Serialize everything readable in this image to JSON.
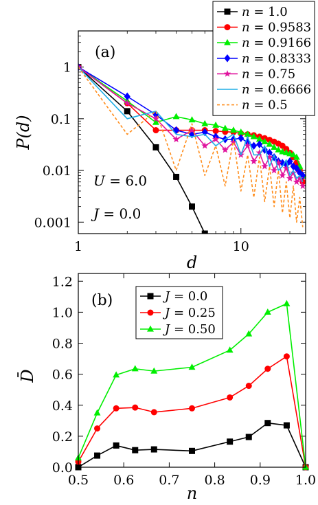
{
  "chart_data": [
    {
      "type": "line",
      "panel_label": "(a)",
      "xlabel": "d",
      "ylabel": "P(d)",
      "xscale": "log",
      "yscale": "log",
      "xlim": [
        1,
        25
      ],
      "ylim": [
        0.0006,
        5
      ],
      "x_ticks": [
        1,
        10
      ],
      "x_tick_labels": [
        "1",
        "10"
      ],
      "y_ticks": [
        1,
        0.1,
        0.01,
        0.001
      ],
      "y_tick_labels": [
        "1",
        "0.1",
        "0.01",
        "0.001"
      ],
      "annotations": [
        "U = 6.0",
        "J = 0.0"
      ],
      "legend_position": "top-right, outside plot",
      "series": [
        {
          "name": "n = 1.0",
          "color": "#000000",
          "marker": "square",
          "dash": "solid",
          "x": [
            1,
            2,
            3,
            4,
            5,
            6
          ],
          "y": [
            1,
            0.14,
            0.028,
            0.0075,
            0.002,
            0.0006
          ]
        },
        {
          "name": "n = 0.9583",
          "color": "#ff0000",
          "marker": "circle",
          "dash": "solid",
          "x": [
            1,
            2,
            3,
            4,
            5,
            6,
            7,
            8,
            9,
            10,
            11,
            12,
            13,
            14,
            15,
            16,
            17,
            18,
            19,
            20,
            21,
            22,
            23,
            24
          ],
          "y": [
            1,
            0.2,
            0.06,
            0.06,
            0.06,
            0.06,
            0.058,
            0.056,
            0.055,
            0.052,
            0.05,
            0.048,
            0.045,
            0.042,
            0.039,
            0.036,
            0.033,
            0.03,
            0.026,
            0.022,
            0.018,
            0.014,
            0.01,
            0.006
          ]
        },
        {
          "name": "n = 0.9166",
          "color": "#00ee00",
          "marker": "triangle",
          "dash": "solid",
          "x": [
            1,
            2,
            3,
            4,
            5,
            6,
            7,
            8,
            9,
            10,
            11,
            12,
            13,
            14,
            15,
            16,
            17,
            18,
            19,
            20,
            21,
            22,
            23,
            24
          ],
          "y": [
            1,
            0.22,
            0.085,
            0.11,
            0.095,
            0.08,
            0.075,
            0.065,
            0.06,
            0.055,
            0.05,
            0.045,
            0.04,
            0.036,
            0.032,
            0.028,
            0.025,
            0.023,
            0.022,
            0.021,
            0.02,
            0.018,
            0.012,
            0.008
          ]
        },
        {
          "name": "n = 0.8333",
          "color": "#0000ff",
          "marker": "diamond",
          "dash": "solid",
          "x": [
            1,
            2,
            3,
            4,
            5,
            6,
            7,
            8,
            9,
            10,
            11,
            12,
            13,
            14,
            15,
            16,
            17,
            18,
            19,
            20,
            21,
            22,
            23,
            24
          ],
          "y": [
            1,
            0.27,
            0.12,
            0.06,
            0.05,
            0.055,
            0.045,
            0.04,
            0.04,
            0.042,
            0.035,
            0.03,
            0.032,
            0.025,
            0.022,
            0.018,
            0.015,
            0.014,
            0.013,
            0.015,
            0.012,
            0.011,
            0.009,
            0.008
          ]
        },
        {
          "name": "n = 0.75",
          "color": "#e0139e",
          "marker": "star",
          "dash": "solid",
          "x": [
            1,
            2,
            3,
            4,
            5,
            6,
            7,
            8,
            9,
            10,
            11,
            12,
            13,
            14,
            15,
            16,
            17,
            18,
            19,
            20,
            21,
            22,
            23,
            24
          ],
          "y": [
            1,
            0.2,
            0.1,
            0.04,
            0.06,
            0.03,
            0.04,
            0.025,
            0.035,
            0.02,
            0.03,
            0.015,
            0.022,
            0.012,
            0.018,
            0.01,
            0.014,
            0.008,
            0.011,
            0.007,
            0.009,
            0.006,
            0.007,
            0.005
          ]
        },
        {
          "name": "n = 0.6666",
          "color": "#1eaee6",
          "marker": "none",
          "dash": "solid",
          "x": [
            1,
            2,
            3,
            4,
            5,
            6,
            7,
            8,
            9,
            10,
            11,
            12,
            13,
            14,
            15,
            16,
            17,
            18,
            19,
            20,
            21,
            22,
            23,
            24
          ],
          "y": [
            1,
            0.1,
            0.14,
            0.05,
            0.045,
            0.05,
            0.03,
            0.04,
            0.05,
            0.02,
            0.045,
            0.02,
            0.02,
            0.03,
            0.012,
            0.02,
            0.01,
            0.012,
            0.016,
            0.008,
            0.01,
            0.007,
            0.008,
            0.006
          ]
        },
        {
          "name": "n = 0.5",
          "color": "#ff8c1a",
          "marker": "none",
          "dash": "dashed",
          "x": [
            1,
            2,
            3,
            4,
            5,
            6,
            7,
            8,
            9,
            10,
            11,
            12,
            13,
            14,
            15,
            16,
            17,
            18,
            19,
            20,
            21,
            22,
            23,
            24
          ],
          "y": [
            1,
            0.05,
            0.14,
            0.01,
            0.08,
            0.008,
            0.03,
            0.005,
            0.04,
            0.004,
            0.02,
            0.003,
            0.018,
            0.0025,
            0.012,
            0.002,
            0.01,
            0.0015,
            0.006,
            0.0012,
            0.005,
            0.001,
            0.003,
            0.0008
          ]
        }
      ]
    },
    {
      "type": "line",
      "panel_label": "(b)",
      "xlabel": "n",
      "ylabel": "D̄",
      "xlim": [
        0.5,
        1.0
      ],
      "ylim": [
        0,
        1.25
      ],
      "x_ticks": [
        0.5,
        0.6,
        0.7,
        0.8,
        0.9,
        1.0
      ],
      "x_tick_labels": [
        "0.5",
        "0.6",
        "0.7",
        "0.8",
        "0.9",
        "1.0"
      ],
      "y_ticks": [
        0,
        0.2,
        0.4,
        0.6,
        0.8,
        1.0,
        1.2
      ],
      "y_tick_labels": [
        "0.0",
        "0.2",
        "0.4",
        "0.6",
        "0.8",
        "1.0",
        "1.2"
      ],
      "legend_position": "top-left, inside plot",
      "series": [
        {
          "name": "J = 0.0",
          "color": "#000000",
          "marker": "square",
          "x": [
            0.5,
            0.5416,
            0.5833,
            0.625,
            0.6666,
            0.75,
            0.8333,
            0.875,
            0.9166,
            0.9583,
            1.0
          ],
          "y": [
            0.0,
            0.075,
            0.14,
            0.11,
            0.115,
            0.105,
            0.165,
            0.195,
            0.285,
            0.27,
            0.0
          ]
        },
        {
          "name": "J = 0.25",
          "color": "#ff0000",
          "marker": "circle",
          "x": [
            0.5,
            0.5416,
            0.5833,
            0.625,
            0.6666,
            0.75,
            0.8333,
            0.875,
            0.9166,
            0.9583,
            1.0
          ],
          "y": [
            0.035,
            0.25,
            0.38,
            0.385,
            0.355,
            0.38,
            0.45,
            0.525,
            0.635,
            0.715,
            0.0
          ]
        },
        {
          "name": "J = 0.50",
          "color": "#00ee00",
          "marker": "triangle",
          "x": [
            0.5,
            0.5416,
            0.5833,
            0.625,
            0.6666,
            0.75,
            0.8333,
            0.875,
            0.9166,
            0.9583,
            1.0
          ],
          "y": [
            0.06,
            0.35,
            0.595,
            0.635,
            0.62,
            0.645,
            0.755,
            0.86,
            1.0,
            1.055,
            0.0
          ]
        }
      ]
    }
  ]
}
